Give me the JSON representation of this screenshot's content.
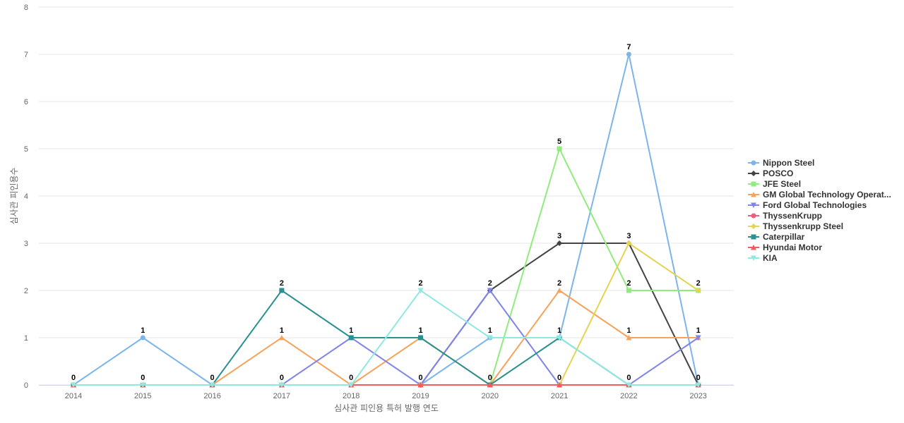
{
  "chart_data": {
    "type": "line",
    "title": "",
    "xlabel": "심사관 피인용 특허 발행 연도",
    "ylabel": "심사관 피인용수",
    "ylim": [
      0,
      8
    ],
    "y_ticks": [
      0,
      1,
      2,
      3,
      4,
      5,
      6,
      7,
      8
    ],
    "grid": true,
    "legend_position": "right",
    "x": [
      "2014",
      "2015",
      "2016",
      "2017",
      "2018",
      "2019",
      "2020",
      "2021",
      "2022",
      "2023"
    ],
    "series": [
      {
        "name": "Nippon Steel",
        "color": "#7cb5ec",
        "marker": "circle",
        "values": [
          0,
          1,
          0,
          0,
          0,
          0,
          1,
          1,
          7,
          0
        ]
      },
      {
        "name": "POSCO",
        "color": "#434348",
        "marker": "diamond",
        "values": [
          0,
          0,
          0,
          0,
          0,
          0,
          2,
          3,
          3,
          0
        ]
      },
      {
        "name": "JFE Steel",
        "color": "#90ed7d",
        "marker": "square",
        "values": [
          0,
          0,
          0,
          0,
          0,
          0,
          0,
          5,
          2,
          2
        ]
      },
      {
        "name": "GM Global Technology Operat...",
        "color": "#f7a35c",
        "marker": "triangle",
        "values": [
          0,
          0,
          0,
          1,
          0,
          1,
          0,
          2,
          1,
          1
        ]
      },
      {
        "name": "Ford Global Technologies",
        "color": "#8085e9",
        "marker": "triangle-down",
        "values": [
          0,
          0,
          0,
          0,
          1,
          0,
          2,
          0,
          0,
          1
        ]
      },
      {
        "name": "ThyssenKrupp",
        "color": "#f15c80",
        "marker": "circle",
        "values": [
          0,
          0,
          0,
          0,
          0,
          0,
          0,
          0,
          0,
          0
        ]
      },
      {
        "name": "Thyssenkrupp Steel",
        "color": "#e4d354",
        "marker": "diamond",
        "values": [
          0,
          0,
          0,
          0,
          0,
          0,
          0,
          0,
          3,
          2
        ]
      },
      {
        "name": "Caterpillar",
        "color": "#2b908f",
        "marker": "square",
        "values": [
          0,
          0,
          0,
          2,
          1,
          1,
          0,
          1,
          0,
          0
        ]
      },
      {
        "name": "Hyundai Motor",
        "color": "#f45b5b",
        "marker": "triangle",
        "values": [
          0,
          0,
          0,
          0,
          0,
          0,
          0,
          0,
          0,
          0
        ]
      },
      {
        "name": "KIA",
        "color": "#91e8e1",
        "marker": "triangle-down",
        "values": [
          0,
          0,
          0,
          0,
          0,
          2,
          1,
          1,
          0,
          0
        ]
      }
    ],
    "data_labels": [
      {
        "x": "2014",
        "text": "0"
      },
      {
        "x": "2015",
        "text": "1"
      },
      {
        "x": "2015",
        "text": "0"
      },
      {
        "x": "2016",
        "text": "0"
      },
      {
        "x": "2017",
        "text": "2"
      },
      {
        "x": "2017",
        "text": "1"
      },
      {
        "x": "2017",
        "text": "0"
      },
      {
        "x": "2018",
        "text": "1"
      },
      {
        "x": "2018",
        "text": "0"
      },
      {
        "x": "2019",
        "text": "2"
      },
      {
        "x": "2019",
        "text": "1"
      },
      {
        "x": "2019",
        "text": "0"
      },
      {
        "x": "2020",
        "text": "2"
      },
      {
        "x": "2020",
        "text": "1"
      },
      {
        "x": "2020",
        "text": "0"
      },
      {
        "x": "2021",
        "text": "5"
      },
      {
        "x": "2021",
        "text": "3"
      },
      {
        "x": "2021",
        "text": "2"
      },
      {
        "x": "2021",
        "text": "1"
      },
      {
        "x": "2021",
        "text": "0"
      },
      {
        "x": "2022",
        "text": "7"
      },
      {
        "x": "2022",
        "text": "3"
      },
      {
        "x": "2022",
        "text": "2"
      },
      {
        "x": "2022",
        "text": "1"
      },
      {
        "x": "2022",
        "text": "0"
      },
      {
        "x": "2023",
        "text": "2"
      },
      {
        "x": "2023",
        "text": "1"
      },
      {
        "x": "2023",
        "text": "0"
      }
    ]
  }
}
